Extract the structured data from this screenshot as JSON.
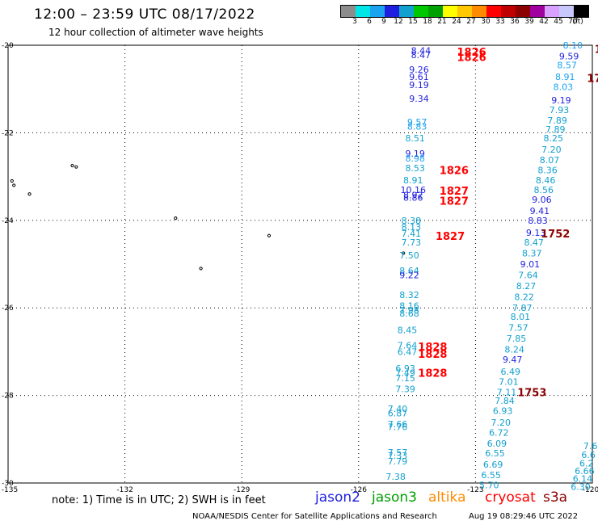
{
  "header": {
    "title": "12:00 – 23:59 UTC 08/17/2022",
    "subtitle": "12 hour collection of altimeter wave heights"
  },
  "legend": {
    "colors": [
      "#8c8c8c",
      "#00e5e5",
      "#1ca3f0",
      "#1f1fe0",
      "#12a0cf",
      "#00c800",
      "#00a000",
      "#ffff00",
      "#ffc800",
      "#ff8c00",
      "#ff0000",
      "#c00000",
      "#8c0000",
      "#a000a0",
      "#d8a0ff",
      "#c8c8ff",
      "#000000"
    ],
    "labels": [
      "3",
      "6",
      "9",
      "12",
      "15",
      "18",
      "21",
      "24",
      "27",
      "30",
      "33",
      "36",
      "39",
      "42",
      "45",
      "70",
      "(ft)"
    ]
  },
  "map": {
    "lat_labels": [
      "-20",
      "-22",
      "-24",
      "-26",
      "-28",
      "-30"
    ],
    "lon_labels": [
      "-135",
      "-132",
      "-129",
      "-126",
      "-123",
      "-120"
    ],
    "tracks": [
      {
        "color": "#1ca3f0",
        "values": [
          {
            "t": "8.44",
            "c": "#1f1fe0",
            "lon": -124.4,
            "lat": -20.12
          },
          {
            "t": "8.47",
            "c": "#1f1fe0",
            "lon": -124.4,
            "lat": -20.22
          },
          {
            "t": "9.26",
            "c": "#1f1fe0",
            "lon": -124.45,
            "lat": -20.55
          },
          {
            "t": "9.61",
            "c": "#1f1fe0",
            "lon": -124.45,
            "lat": -20.72
          },
          {
            "t": "9.19",
            "c": "#1f1fe0",
            "lon": -124.45,
            "lat": -20.9
          },
          {
            "t": "9.34",
            "c": "#1f1fe0",
            "lon": -124.45,
            "lat": -21.22
          },
          {
            "t": "9.57",
            "c": "#1ca3f0",
            "lon": -124.5,
            "lat": -21.75
          },
          {
            "t": "8.83",
            "c": "#1ca3f0",
            "lon": -124.5,
            "lat": -21.85
          },
          {
            "t": "8.51",
            "c": "#12a0cf",
            "lon": -124.55,
            "lat": -22.12
          },
          {
            "t": "9.19",
            "c": "#1f1fe0",
            "lon": -124.55,
            "lat": -22.47
          },
          {
            "t": "8.98",
            "c": "#1ca3f0",
            "lon": -124.55,
            "lat": -22.58
          },
          {
            "t": "8.53",
            "c": "#12a0cf",
            "lon": -124.55,
            "lat": -22.8
          },
          {
            "t": "8.91",
            "c": "#12a0cf",
            "lon": -124.6,
            "lat": -23.08
          },
          {
            "t": "10.16",
            "c": "#1f1fe0",
            "lon": -124.6,
            "lat": -23.3
          },
          {
            "t": "8.92",
            "c": "#1f1fe0",
            "lon": -124.6,
            "lat": -23.42
          },
          {
            "t": "8.86",
            "c": "#1f1fe0",
            "lon": -124.6,
            "lat": -23.48
          },
          {
            "t": "8.38",
            "c": "#12a0cf",
            "lon": -124.65,
            "lat": -24.0
          },
          {
            "t": "8.13",
            "c": "#12a0cf",
            "lon": -124.65,
            "lat": -24.15
          },
          {
            "t": "7.41",
            "c": "#12a0cf",
            "lon": -124.65,
            "lat": -24.3
          },
          {
            "t": "7.73",
            "c": "#12a0cf",
            "lon": -124.65,
            "lat": -24.5
          },
          {
            "t": "7.50",
            "c": "#12a0cf",
            "lon": -124.7,
            "lat": -24.8
          },
          {
            "t": "8.64",
            "c": "#12a0cf",
            "lon": -124.7,
            "lat": -25.15
          },
          {
            "t": "9.22",
            "c": "#1f1fe0",
            "lon": -124.7,
            "lat": -25.25
          },
          {
            "t": "8.32",
            "c": "#12a0cf",
            "lon": -124.7,
            "lat": -25.7
          },
          {
            "t": "8.16",
            "c": "#12a0cf",
            "lon": -124.7,
            "lat": -25.95
          },
          {
            "t": "7.98",
            "c": "#12a0cf",
            "lon": -124.7,
            "lat": -26.05
          },
          {
            "t": "8.68",
            "c": "#12a0cf",
            "lon": -124.7,
            "lat": -26.13
          },
          {
            "t": "8.45",
            "c": "#12a0cf",
            "lon": -124.75,
            "lat": -26.5
          },
          {
            "t": "7.64",
            "c": "#12a0cf",
            "lon": -124.75,
            "lat": -26.85
          },
          {
            "t": "6.47",
            "c": "#12a0cf",
            "lon": -124.75,
            "lat": -27.0
          },
          {
            "t": "6.93",
            "c": "#12a0cf",
            "lon": -124.8,
            "lat": -27.38
          },
          {
            "t": "7.49",
            "c": "#12a0cf",
            "lon": -124.8,
            "lat": -27.48
          },
          {
            "t": "7.15",
            "c": "#12a0cf",
            "lon": -124.8,
            "lat": -27.6
          },
          {
            "t": "7.39",
            "c": "#12a0cf",
            "lon": -124.8,
            "lat": -27.85
          },
          {
            "t": "7.40",
            "c": "#12a0cf",
            "lon": -125.0,
            "lat": -28.3
          },
          {
            "t": "6.87",
            "c": "#12a0cf",
            "lon": -125.0,
            "lat": -28.4
          },
          {
            "t": "7.66",
            "c": "#12a0cf",
            "lon": -125.0,
            "lat": -28.65
          },
          {
            "t": "7.76",
            "c": "#12a0cf",
            "lon": -125.0,
            "lat": -28.72
          },
          {
            "t": "7.57",
            "c": "#12a0cf",
            "lon": -125.0,
            "lat": -29.3
          },
          {
            "t": "7.33",
            "c": "#12a0cf",
            "lon": -125.0,
            "lat": -29.37
          },
          {
            "t": "7.79",
            "c": "#12a0cf",
            "lon": -125.0,
            "lat": -29.5
          },
          {
            "t": "7.38",
            "c": "#12a0cf",
            "lon": -125.05,
            "lat": -29.85
          }
        ]
      },
      {
        "color": "#1ca3f0",
        "values": [
          {
            "t": "8.10",
            "c": "#1ca3f0",
            "lon": -120.5,
            "lat": -20.0
          },
          {
            "t": "9.59",
            "c": "#1f1fe0",
            "lon": -120.6,
            "lat": -20.25
          },
          {
            "t": "8.57",
            "c": "#1ca3f0",
            "lon": -120.65,
            "lat": -20.45
          },
          {
            "t": "8.91",
            "c": "#1ca3f0",
            "lon": -120.7,
            "lat": -20.72
          },
          {
            "t": "8.03",
            "c": "#1ca3f0",
            "lon": -120.75,
            "lat": -20.95
          },
          {
            "t": "9.19",
            "c": "#1f1fe0",
            "lon": -120.8,
            "lat": -21.25
          },
          {
            "t": "7.93",
            "c": "#12a0cf",
            "lon": -120.85,
            "lat": -21.48
          },
          {
            "t": "7.89",
            "c": "#12a0cf",
            "lon": -120.9,
            "lat": -21.72
          },
          {
            "t": "7.89",
            "c": "#12a0cf",
            "lon": -120.95,
            "lat": -21.92
          },
          {
            "t": "8.25",
            "c": "#12a0cf",
            "lon": -121.0,
            "lat": -22.12
          },
          {
            "t": "7.20",
            "c": "#12a0cf",
            "lon": -121.05,
            "lat": -22.38
          },
          {
            "t": "8.07",
            "c": "#12a0cf",
            "lon": -121.1,
            "lat": -22.62
          },
          {
            "t": "8.36",
            "c": "#12a0cf",
            "lon": -121.15,
            "lat": -22.85
          },
          {
            "t": "8.46",
            "c": "#12a0cf",
            "lon": -121.2,
            "lat": -23.08
          },
          {
            "t": "8.56",
            "c": "#12a0cf",
            "lon": -121.25,
            "lat": -23.3
          },
          {
            "t": "9.06",
            "c": "#1f1fe0",
            "lon": -121.3,
            "lat": -23.52
          },
          {
            "t": "9.41",
            "c": "#1f1fe0",
            "lon": -121.35,
            "lat": -23.78
          },
          {
            "t": "8.83",
            "c": "#1f1fe0",
            "lon": -121.4,
            "lat": -24.0
          },
          {
            "t": "9.13",
            "c": "#1f1fe0",
            "lon": -121.45,
            "lat": -24.28
          },
          {
            "t": "8.47",
            "c": "#12a0cf",
            "lon": -121.5,
            "lat": -24.5
          },
          {
            "t": "8.37",
            "c": "#12a0cf",
            "lon": -121.55,
            "lat": -24.75
          },
          {
            "t": "9.01",
            "c": "#1f1fe0",
            "lon": -121.6,
            "lat": -25.0
          },
          {
            "t": "7.64",
            "c": "#12a0cf",
            "lon": -121.65,
            "lat": -25.25
          },
          {
            "t": "8.27",
            "c": "#12a0cf",
            "lon": -121.7,
            "lat": -25.5
          },
          {
            "t": "8.22",
            "c": "#12a0cf",
            "lon": -121.75,
            "lat": -25.75
          },
          {
            "t": "7.87",
            "c": "#12a0cf",
            "lon": -121.8,
            "lat": -26.0
          },
          {
            "t": "8.01",
            "c": "#12a0cf",
            "lon": -121.85,
            "lat": -26.2
          },
          {
            "t": "7.57",
            "c": "#12a0cf",
            "lon": -121.9,
            "lat": -26.45
          },
          {
            "t": "7.85",
            "c": "#12a0cf",
            "lon": -121.95,
            "lat": -26.7
          },
          {
            "t": "8.24",
            "c": "#12a0cf",
            "lon": -122.0,
            "lat": -26.95
          },
          {
            "t": "9.47",
            "c": "#1f1fe0",
            "lon": -122.05,
            "lat": -27.18
          },
          {
            "t": "6.49",
            "c": "#12a0cf",
            "lon": -122.1,
            "lat": -27.45
          },
          {
            "t": "7.01",
            "c": "#12a0cf",
            "lon": -122.15,
            "lat": -27.68
          },
          {
            "t": "7.11",
            "c": "#12a0cf",
            "lon": -122.2,
            "lat": -27.92
          },
          {
            "t": "7.84",
            "c": "#12a0cf",
            "lon": -122.25,
            "lat": -28.12
          },
          {
            "t": "6.93",
            "c": "#12a0cf",
            "lon": -122.3,
            "lat": -28.35
          },
          {
            "t": "7.20",
            "c": "#12a0cf",
            "lon": -122.35,
            "lat": -28.62
          },
          {
            "t": "6.72",
            "c": "#12a0cf",
            "lon": -122.4,
            "lat": -28.85
          },
          {
            "t": "6.09",
            "c": "#12a0cf",
            "lon": -122.45,
            "lat": -29.1
          },
          {
            "t": "6.55",
            "c": "#12a0cf",
            "lon": -122.5,
            "lat": -29.32
          },
          {
            "t": "6.69",
            "c": "#12a0cf",
            "lon": -122.55,
            "lat": -29.58
          },
          {
            "t": "6.55",
            "c": "#12a0cf",
            "lon": -122.6,
            "lat": -29.82
          },
          {
            "t": "5.70",
            "c": "#12a0cf",
            "lon": -122.65,
            "lat": -30.05
          }
        ]
      },
      {
        "color": "#12a0cf",
        "values": [
          {
            "t": "7.6",
            "c": "#12a0cf",
            "lon": -120.05,
            "lat": -29.15
          },
          {
            "t": "6.6",
            "c": "#12a0cf",
            "lon": -120.1,
            "lat": -29.35
          },
          {
            "t": "6.2",
            "c": "#12a0cf",
            "lon": -120.15,
            "lat": -29.55
          },
          {
            "t": "6.66",
            "c": "#12a0cf",
            "lon": -120.2,
            "lat": -29.72
          },
          {
            "t": "6.14",
            "c": "#12a0cf",
            "lon": -120.25,
            "lat": -29.9
          },
          {
            "t": "6.30",
            "c": "#12a0cf",
            "lon": -120.3,
            "lat": -30.08
          }
        ]
      }
    ],
    "time_labels": [
      {
        "t": "1826",
        "c": "#ff0000",
        "lon": -123.1,
        "lat": -20.15
      },
      {
        "t": "1826",
        "c": "#ff0000",
        "lon": -123.1,
        "lat": -20.27
      },
      {
        "t": "1826",
        "c": "#ff0000",
        "lon": -123.55,
        "lat": -22.85
      },
      {
        "t": "1827",
        "c": "#ff0000",
        "lon": -123.55,
        "lat": -23.32
      },
      {
        "t": "1827",
        "c": "#ff0000",
        "lon": -123.55,
        "lat": -23.55
      },
      {
        "t": "1827",
        "c": "#ff0000",
        "lon": -123.65,
        "lat": -24.35
      },
      {
        "t": "1828",
        "c": "#ff0000",
        "lon": -124.1,
        "lat": -26.88
      },
      {
        "t": "1828",
        "c": "#ff0000",
        "lon": -124.1,
        "lat": -27.05
      },
      {
        "t": "1828",
        "c": "#ff0000",
        "lon": -124.1,
        "lat": -27.48
      },
      {
        "t": "1752",
        "c": "#8c0000",
        "lon": -120.95,
        "lat": -24.3
      },
      {
        "t": "1753",
        "c": "#8c0000",
        "lon": -121.55,
        "lat": -27.92
      },
      {
        "t": "17",
        "c": "#8c0000",
        "lon": -119.95,
        "lat": -20.75
      },
      {
        "t": "1",
        "c": "#8c0000",
        "lon": -119.85,
        "lat": -20.08
      }
    ],
    "islands": [
      {
        "lon": -133.35,
        "lat": -22.75
      },
      {
        "lon": -133.25,
        "lat": -22.78
      },
      {
        "lon": -134.9,
        "lat": -23.1
      },
      {
        "lon": -134.85,
        "lat": -23.2
      },
      {
        "lon": -134.45,
        "lat": -23.4
      },
      {
        "lon": -130.7,
        "lat": -23.95
      },
      {
        "lon": -130.05,
        "lat": -25.1
      },
      {
        "lon": -128.3,
        "lat": -24.35
      },
      {
        "lon": -124.85,
        "lat": -24.75
      }
    ]
  },
  "note": "note:  1) Time is in UTC; 2) SWH is in feet",
  "satellites": [
    {
      "name": "jason2",
      "color": "#1f1fe0"
    },
    {
      "name": "jason3",
      "color": "#00a000"
    },
    {
      "name": "altika",
      "color": "#ff8c00"
    },
    {
      "name": "cryosat",
      "color": "#ff0000"
    },
    {
      "name": "s3a",
      "color": "#8c0000"
    }
  ],
  "footer": {
    "credit": "NOAA/NESDIS Center for Satellite Applications and Research",
    "timestamp": "Aug 19 08:29:46 UTC 2022"
  }
}
